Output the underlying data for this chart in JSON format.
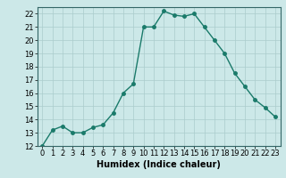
{
  "x": [
    0,
    1,
    2,
    3,
    4,
    5,
    6,
    7,
    8,
    9,
    10,
    11,
    12,
    13,
    14,
    15,
    16,
    17,
    18,
    19,
    20,
    21,
    22,
    23
  ],
  "y": [
    12,
    13.2,
    13.5,
    13.0,
    13.0,
    13.4,
    13.6,
    14.5,
    16.0,
    16.7,
    21.0,
    21.0,
    22.2,
    21.9,
    21.8,
    22.0,
    21.0,
    20.0,
    19.0,
    17.5,
    16.5,
    15.5,
    14.9,
    14.2
  ],
  "line_color": "#1a7a6a",
  "marker": "o",
  "markersize": 2.5,
  "linewidth": 1.0,
  "xlabel": "Humidex (Indice chaleur)",
  "xlim": [
    -0.5,
    23.5
  ],
  "ylim": [
    12,
    22.5
  ],
  "yticks": [
    12,
    13,
    14,
    15,
    16,
    17,
    18,
    19,
    20,
    21,
    22
  ],
  "xticks": [
    0,
    1,
    2,
    3,
    4,
    5,
    6,
    7,
    8,
    9,
    10,
    11,
    12,
    13,
    14,
    15,
    16,
    17,
    18,
    19,
    20,
    21,
    22,
    23
  ],
  "bg_color": "#cce8e8",
  "grid_color": "#aacccc",
  "label_fontsize": 7,
  "tick_fontsize": 6
}
